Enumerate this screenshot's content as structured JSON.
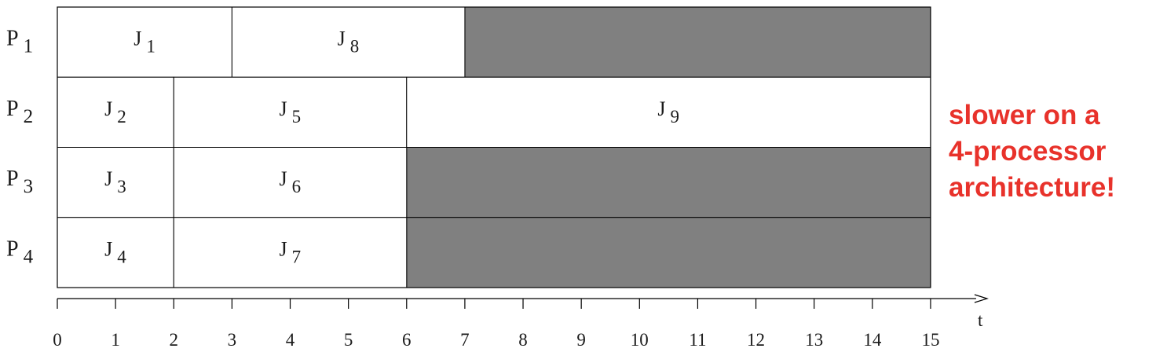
{
  "processors": [
    {
      "base": "P",
      "sub": "1"
    },
    {
      "base": "P",
      "sub": "2"
    },
    {
      "base": "P",
      "sub": "3"
    },
    {
      "base": "P",
      "sub": "4"
    }
  ],
  "jobs": [
    {
      "processor": 0,
      "start": 0,
      "end": 3,
      "base": "J",
      "sub": "1"
    },
    {
      "processor": 0,
      "start": 3,
      "end": 7,
      "base": "J",
      "sub": "8"
    },
    {
      "processor": 1,
      "start": 0,
      "end": 2,
      "base": "J",
      "sub": "2"
    },
    {
      "processor": 1,
      "start": 2,
      "end": 6,
      "base": "J",
      "sub": "5"
    },
    {
      "processor": 1,
      "start": 6,
      "end": 15,
      "base": "J",
      "sub": "9"
    },
    {
      "processor": 2,
      "start": 0,
      "end": 2,
      "base": "J",
      "sub": "3"
    },
    {
      "processor": 2,
      "start": 2,
      "end": 6,
      "base": "J",
      "sub": "6"
    },
    {
      "processor": 3,
      "start": 0,
      "end": 2,
      "base": "J",
      "sub": "4"
    },
    {
      "processor": 3,
      "start": 2,
      "end": 6,
      "base": "J",
      "sub": "7"
    }
  ],
  "idle": [
    {
      "processor": 0,
      "start": 7,
      "end": 15
    },
    {
      "processor": 2,
      "start": 6,
      "end": 15
    },
    {
      "processor": 3,
      "start": 6,
      "end": 15
    }
  ],
  "time_axis": {
    "label": "t",
    "ticks": [
      "0",
      "1",
      "2",
      "3",
      "4",
      "5",
      "6",
      "7",
      "8",
      "9",
      "10",
      "11",
      "12",
      "13",
      "14",
      "15"
    ]
  },
  "note": {
    "lines": [
      "slower on a",
      "4-processor",
      "architecture!"
    ],
    "color": "#e8322b"
  },
  "colors": {
    "idle_fill": "#808080",
    "line": "#000000",
    "text": "#1a1a1a"
  }
}
